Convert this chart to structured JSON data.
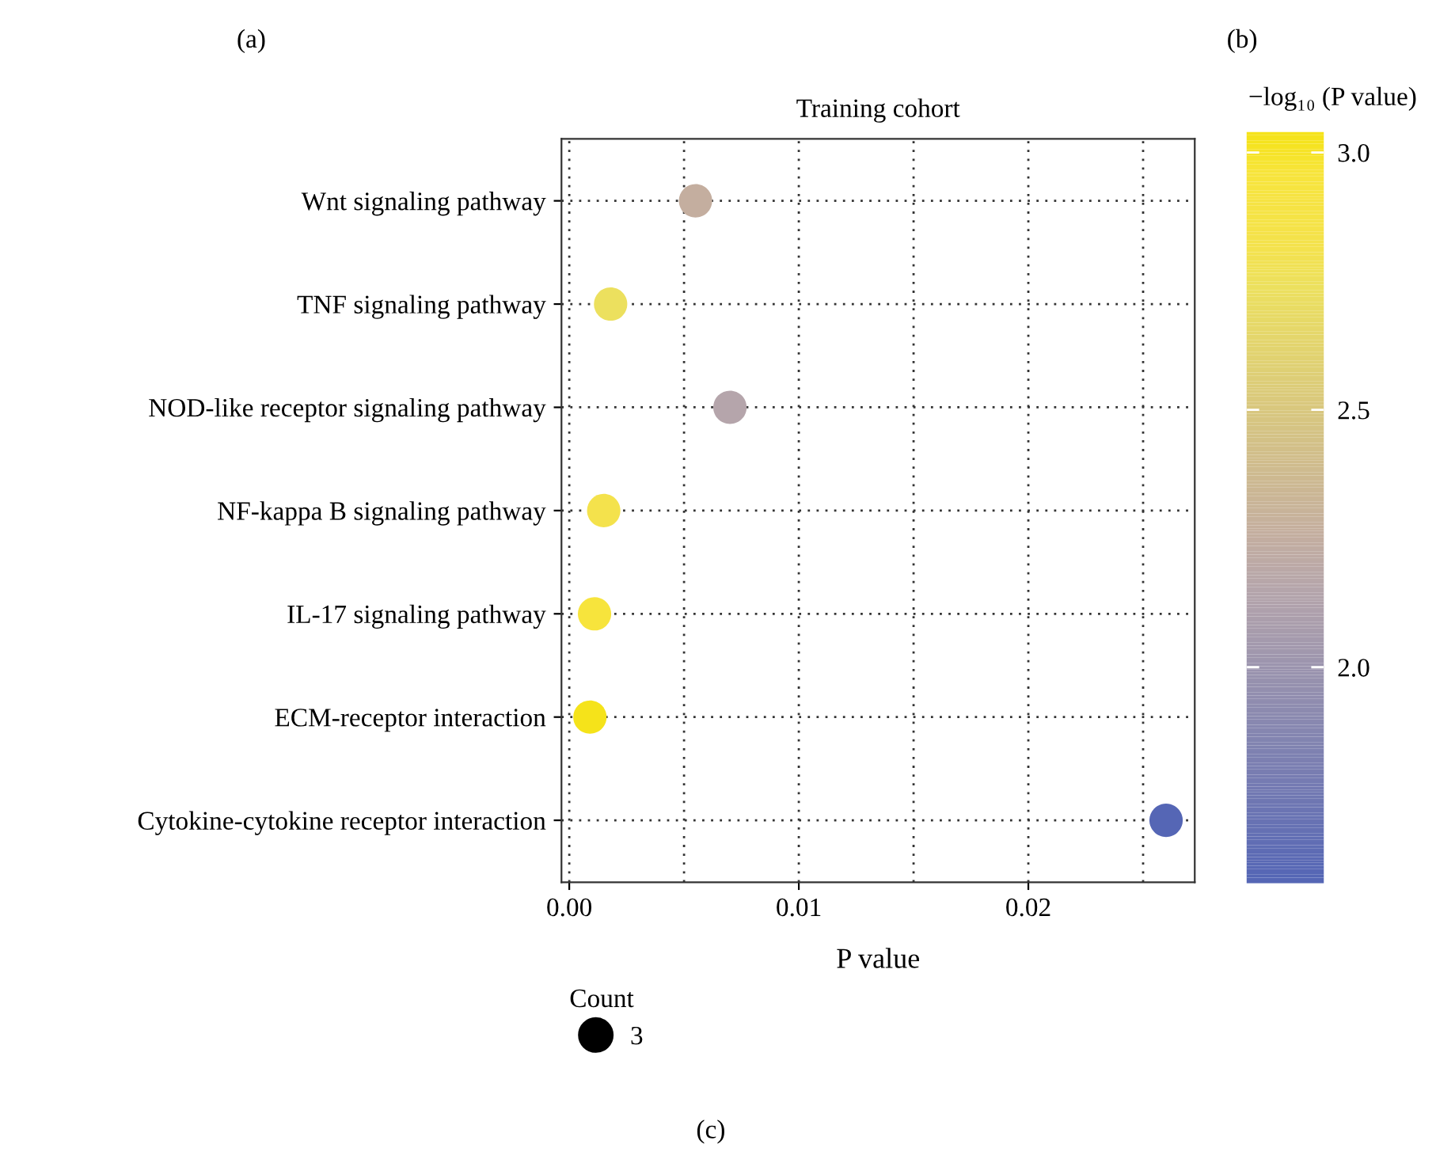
{
  "chart_data": {
    "type": "scatter",
    "title": "Training cohort",
    "xlabel": "P value",
    "clabel": "−log₁₀ (P value)",
    "legend_title": "Count",
    "categories": [
      "Wnt signaling pathway",
      "TNF signaling pathway",
      "NOD-like receptor signaling pathway",
      "NF-kappa B signaling pathway",
      "IL-17 signaling pathway",
      "ECM-receptor interaction",
      "Cytokine-cytokine receptor interaction"
    ],
    "orientation": "horizontal",
    "values": [
      0.0055,
      0.0018,
      0.007,
      0.0015,
      0.0011,
      0.0009,
      0.026
    ],
    "cvalues": [
      2.26,
      2.74,
      2.15,
      2.82,
      2.96,
      3.03,
      1.59
    ],
    "colors": [
      "#c4ae9f",
      "#ece05e",
      "#b5a5ab",
      "#f4e24c",
      "#f7e43c",
      "#f5e31a",
      "#5566b5"
    ],
    "sizes": [
      3,
      3,
      3,
      3,
      3,
      3,
      3
    ],
    "size_legend": [
      3
    ],
    "xlim": [
      -0.00034,
      0.02725
    ],
    "xticks": [
      {
        "value": 0,
        "label": "0.00"
      },
      {
        "value": 0.005,
        "label": null
      },
      {
        "value": 0.01,
        "label": "0.01"
      },
      {
        "value": 0.015,
        "label": null
      },
      {
        "value": 0.02,
        "label": "0.02"
      },
      {
        "value": 0.025,
        "label": null
      }
    ],
    "clim": [
      1.58,
      3.04
    ],
    "cticks": [
      {
        "value": 2,
        "label": "2.0"
      },
      {
        "value": 2.5,
        "label": "2.5"
      },
      {
        "value": 3,
        "label": "3.0"
      }
    ],
    "grid": true,
    "marker": "circle",
    "annotations": [
      "(a)",
      "(b)",
      "(c)"
    ]
  }
}
